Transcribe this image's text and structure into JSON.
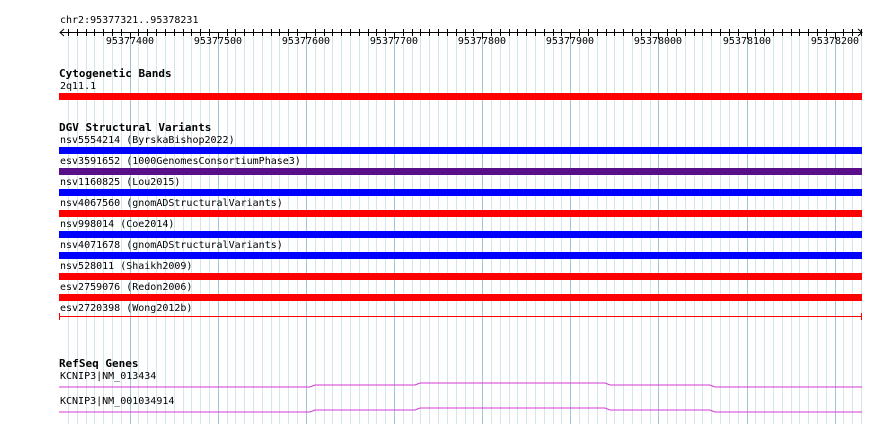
{
  "ruler": {
    "location": "chr2:95377321..95378231",
    "start": 95377321,
    "end": 95378231,
    "ticks": [
      "95377400",
      "95377500",
      "95377600",
      "95377700",
      "95377800",
      "95377900",
      "95378000",
      "95378100",
      "95378200"
    ]
  },
  "tracks": {
    "cytoband": {
      "title": "Cytogenetic Bands",
      "features": [
        {
          "label": "2q11.1",
          "color": "#ff0000"
        }
      ]
    },
    "dgv": {
      "title": "DGV Structural Variants",
      "features": [
        {
          "label": "nsv5554214 (ByrskaBishop2022)",
          "color": "#0000ff"
        },
        {
          "label": "esv3591652 (1000GenomesConsortiumPhase3)",
          "color": "#5a0f8a"
        },
        {
          "label": "nsv1160825 (Lou2015)",
          "color": "#0000ff"
        },
        {
          "label": "nsv4067560 (gnomADStructuralVariants)",
          "color": "#ff0000"
        },
        {
          "label": "nsv998014 (Coe2014)",
          "color": "#0000ff"
        },
        {
          "label": "nsv4071678 (gnomADStructuralVariants)",
          "color": "#0000ff"
        },
        {
          "label": "nsv528011 (Shaikh2009)",
          "color": "#ff0000"
        },
        {
          "label": "esv2759076 (Redon2006)",
          "color": "#ff0000"
        },
        {
          "label": "esv2720398 (Wong2012b)",
          "color": "#ff0000"
        }
      ]
    },
    "refseq": {
      "title": "RefSeq Genes",
      "features": [
        {
          "label": "KCNIP3|NM_013434",
          "color": "#d438d4"
        },
        {
          "label": "KCNIP3|NM_001034914",
          "color": "#d438d4"
        }
      ]
    }
  }
}
